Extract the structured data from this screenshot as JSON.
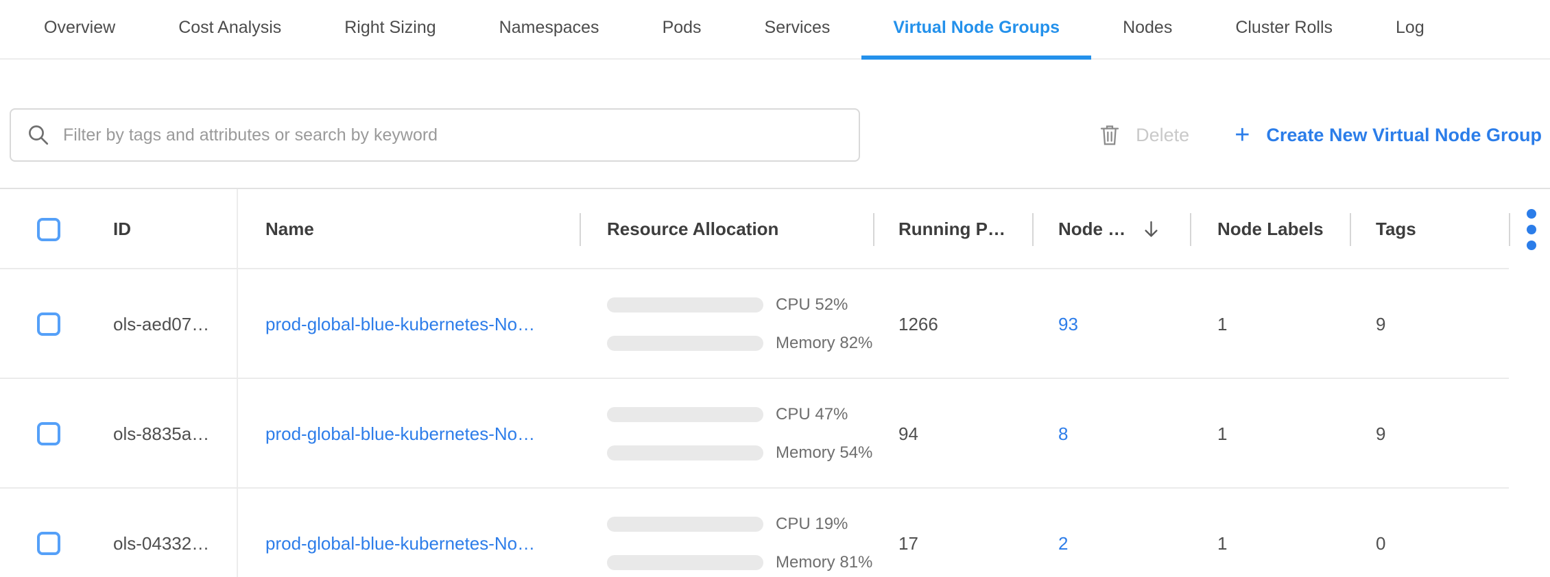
{
  "tabs": {
    "items": [
      {
        "label": "Overview",
        "active": false
      },
      {
        "label": "Cost Analysis",
        "active": false
      },
      {
        "label": "Right Sizing",
        "active": false
      },
      {
        "label": "Namespaces",
        "active": false
      },
      {
        "label": "Pods",
        "active": false
      },
      {
        "label": "Services",
        "active": false
      },
      {
        "label": "Virtual Node Groups",
        "active": true
      },
      {
        "label": "Nodes",
        "active": false
      },
      {
        "label": "Cluster Rolls",
        "active": false
      },
      {
        "label": "Log",
        "active": false
      }
    ]
  },
  "toolbar": {
    "filter_placeholder": "Filter by tags and attributes or search by keyword",
    "search_icon": "magnifier-icon",
    "delete_label": "Delete",
    "delete_icon": "trash-icon",
    "delete_enabled": false,
    "plus_icon": "+",
    "create_label": "Create New Virtual Node Group"
  },
  "table": {
    "columns": {
      "id": "ID",
      "name": "Name",
      "resource": "Resource Allocation",
      "running_pods": "Running P…",
      "nodes": "Node …",
      "node_labels": "Node Labels",
      "tags": "Tags"
    },
    "sort": {
      "column": "nodes",
      "direction": "desc",
      "arrow_icon": "arrow-down-icon"
    },
    "rows": [
      {
        "id": "ols-aed07…",
        "name": "prod-global-blue-kubernetes-No…",
        "cpu_pct": 52,
        "cpu_label": "CPU 52%",
        "memory_pct": 82,
        "memory_label": "Memory 82%",
        "running_pods": "1266",
        "nodes": "93",
        "node_labels": "1",
        "tags": "9",
        "selected": false
      },
      {
        "id": "ols-8835a…",
        "name": "prod-global-blue-kubernetes-No…",
        "cpu_pct": 47,
        "cpu_label": "CPU 47%",
        "memory_pct": 54,
        "memory_label": "Memory 54%",
        "running_pods": "94",
        "nodes": "8",
        "node_labels": "1",
        "tags": "9",
        "selected": false
      },
      {
        "id": "ols-04332…",
        "name": "prod-global-blue-kubernetes-No…",
        "cpu_pct": 19,
        "cpu_label": "CPU 19%",
        "memory_pct": 81,
        "memory_label": "Memory 81%",
        "running_pods": "17",
        "nodes": "2",
        "node_labels": "1",
        "tags": "0",
        "selected": false
      }
    ]
  },
  "colors": {
    "accent_blue": "#2b7de9",
    "tab_active_blue": "#2491eb",
    "bar_cpu_blue": "#3d8af7",
    "bar_memory_green": "#5cbd75",
    "bar_track_gray": "#e9e9e9",
    "disabled_text_gray": "#c9c9c9",
    "border_gray": "#ececec"
  }
}
